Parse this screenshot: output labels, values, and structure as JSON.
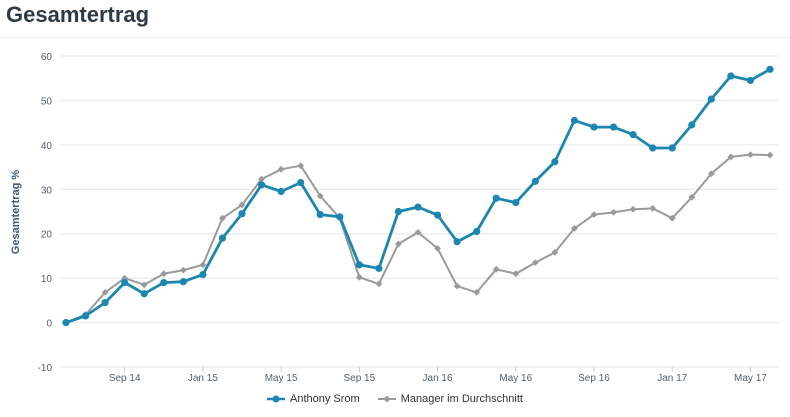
{
  "title": "Gesamtertrag",
  "chart_data": {
    "type": "line",
    "ylabel": "Gesamtertrag %",
    "ylim": [
      -10,
      60
    ],
    "yticks": [
      -10,
      0,
      10,
      20,
      30,
      40,
      50,
      60
    ],
    "grid": true,
    "legend_position": "bottom",
    "x": [
      "Jun 14",
      "Jul 14",
      "Aug 14",
      "Sep 14",
      "Oct 14",
      "Nov 14",
      "Dec 14",
      "Jan 15",
      "Feb 15",
      "Mar 15",
      "Apr 15",
      "May 15",
      "Jun 15",
      "Jul 15",
      "Aug 15",
      "Sep 15",
      "Oct 15",
      "Nov 15",
      "Dec 15",
      "Jan 16",
      "Feb 16",
      "Mar 16",
      "Apr 16",
      "May 16",
      "Jun 16",
      "Jul 16",
      "Aug 16",
      "Sep 16",
      "Oct 16",
      "Nov 16",
      "Dec 16",
      "Jan 17",
      "Feb 17",
      "Mar 17",
      "Apr 17",
      "May 17",
      "Jun 17"
    ],
    "xtick_labels": [
      "Sep 14",
      "Jan 15",
      "May 15",
      "Sep 15",
      "Jan 16",
      "May 16",
      "Sep 16",
      "Jan 17",
      "May 17"
    ],
    "series": [
      {
        "name": "Anthony Srom",
        "color": "#1b87b0",
        "marker": "circle",
        "values": [
          0,
          1.5,
          4.5,
          9,
          6.5,
          9,
          9.2,
          10.8,
          19,
          24.5,
          31,
          29.5,
          31.5,
          24.3,
          23.8,
          13,
          12.2,
          25,
          26,
          24.2,
          18.2,
          20.5,
          28,
          27,
          31.8,
          36.2,
          45.5,
          44,
          44,
          42.3,
          39.3,
          39.3,
          44.5,
          50.3,
          55.5,
          54.5,
          57
        ]
      },
      {
        "name": "Manager im Durchschnitt",
        "color": "#9a9a9a",
        "marker": "diamond",
        "values": [
          0,
          1.8,
          6.8,
          10,
          8.5,
          11,
          11.8,
          13,
          23.5,
          26.5,
          32.3,
          34.5,
          35.3,
          28.5,
          23.5,
          10.2,
          8.7,
          17.7,
          20.3,
          16.7,
          8.2,
          6.8,
          12,
          11,
          13.5,
          15.8,
          21.2,
          24.3,
          24.8,
          25.5,
          25.7,
          23.5,
          28.2,
          33.5,
          37.3,
          37.8,
          37.7
        ]
      }
    ]
  }
}
